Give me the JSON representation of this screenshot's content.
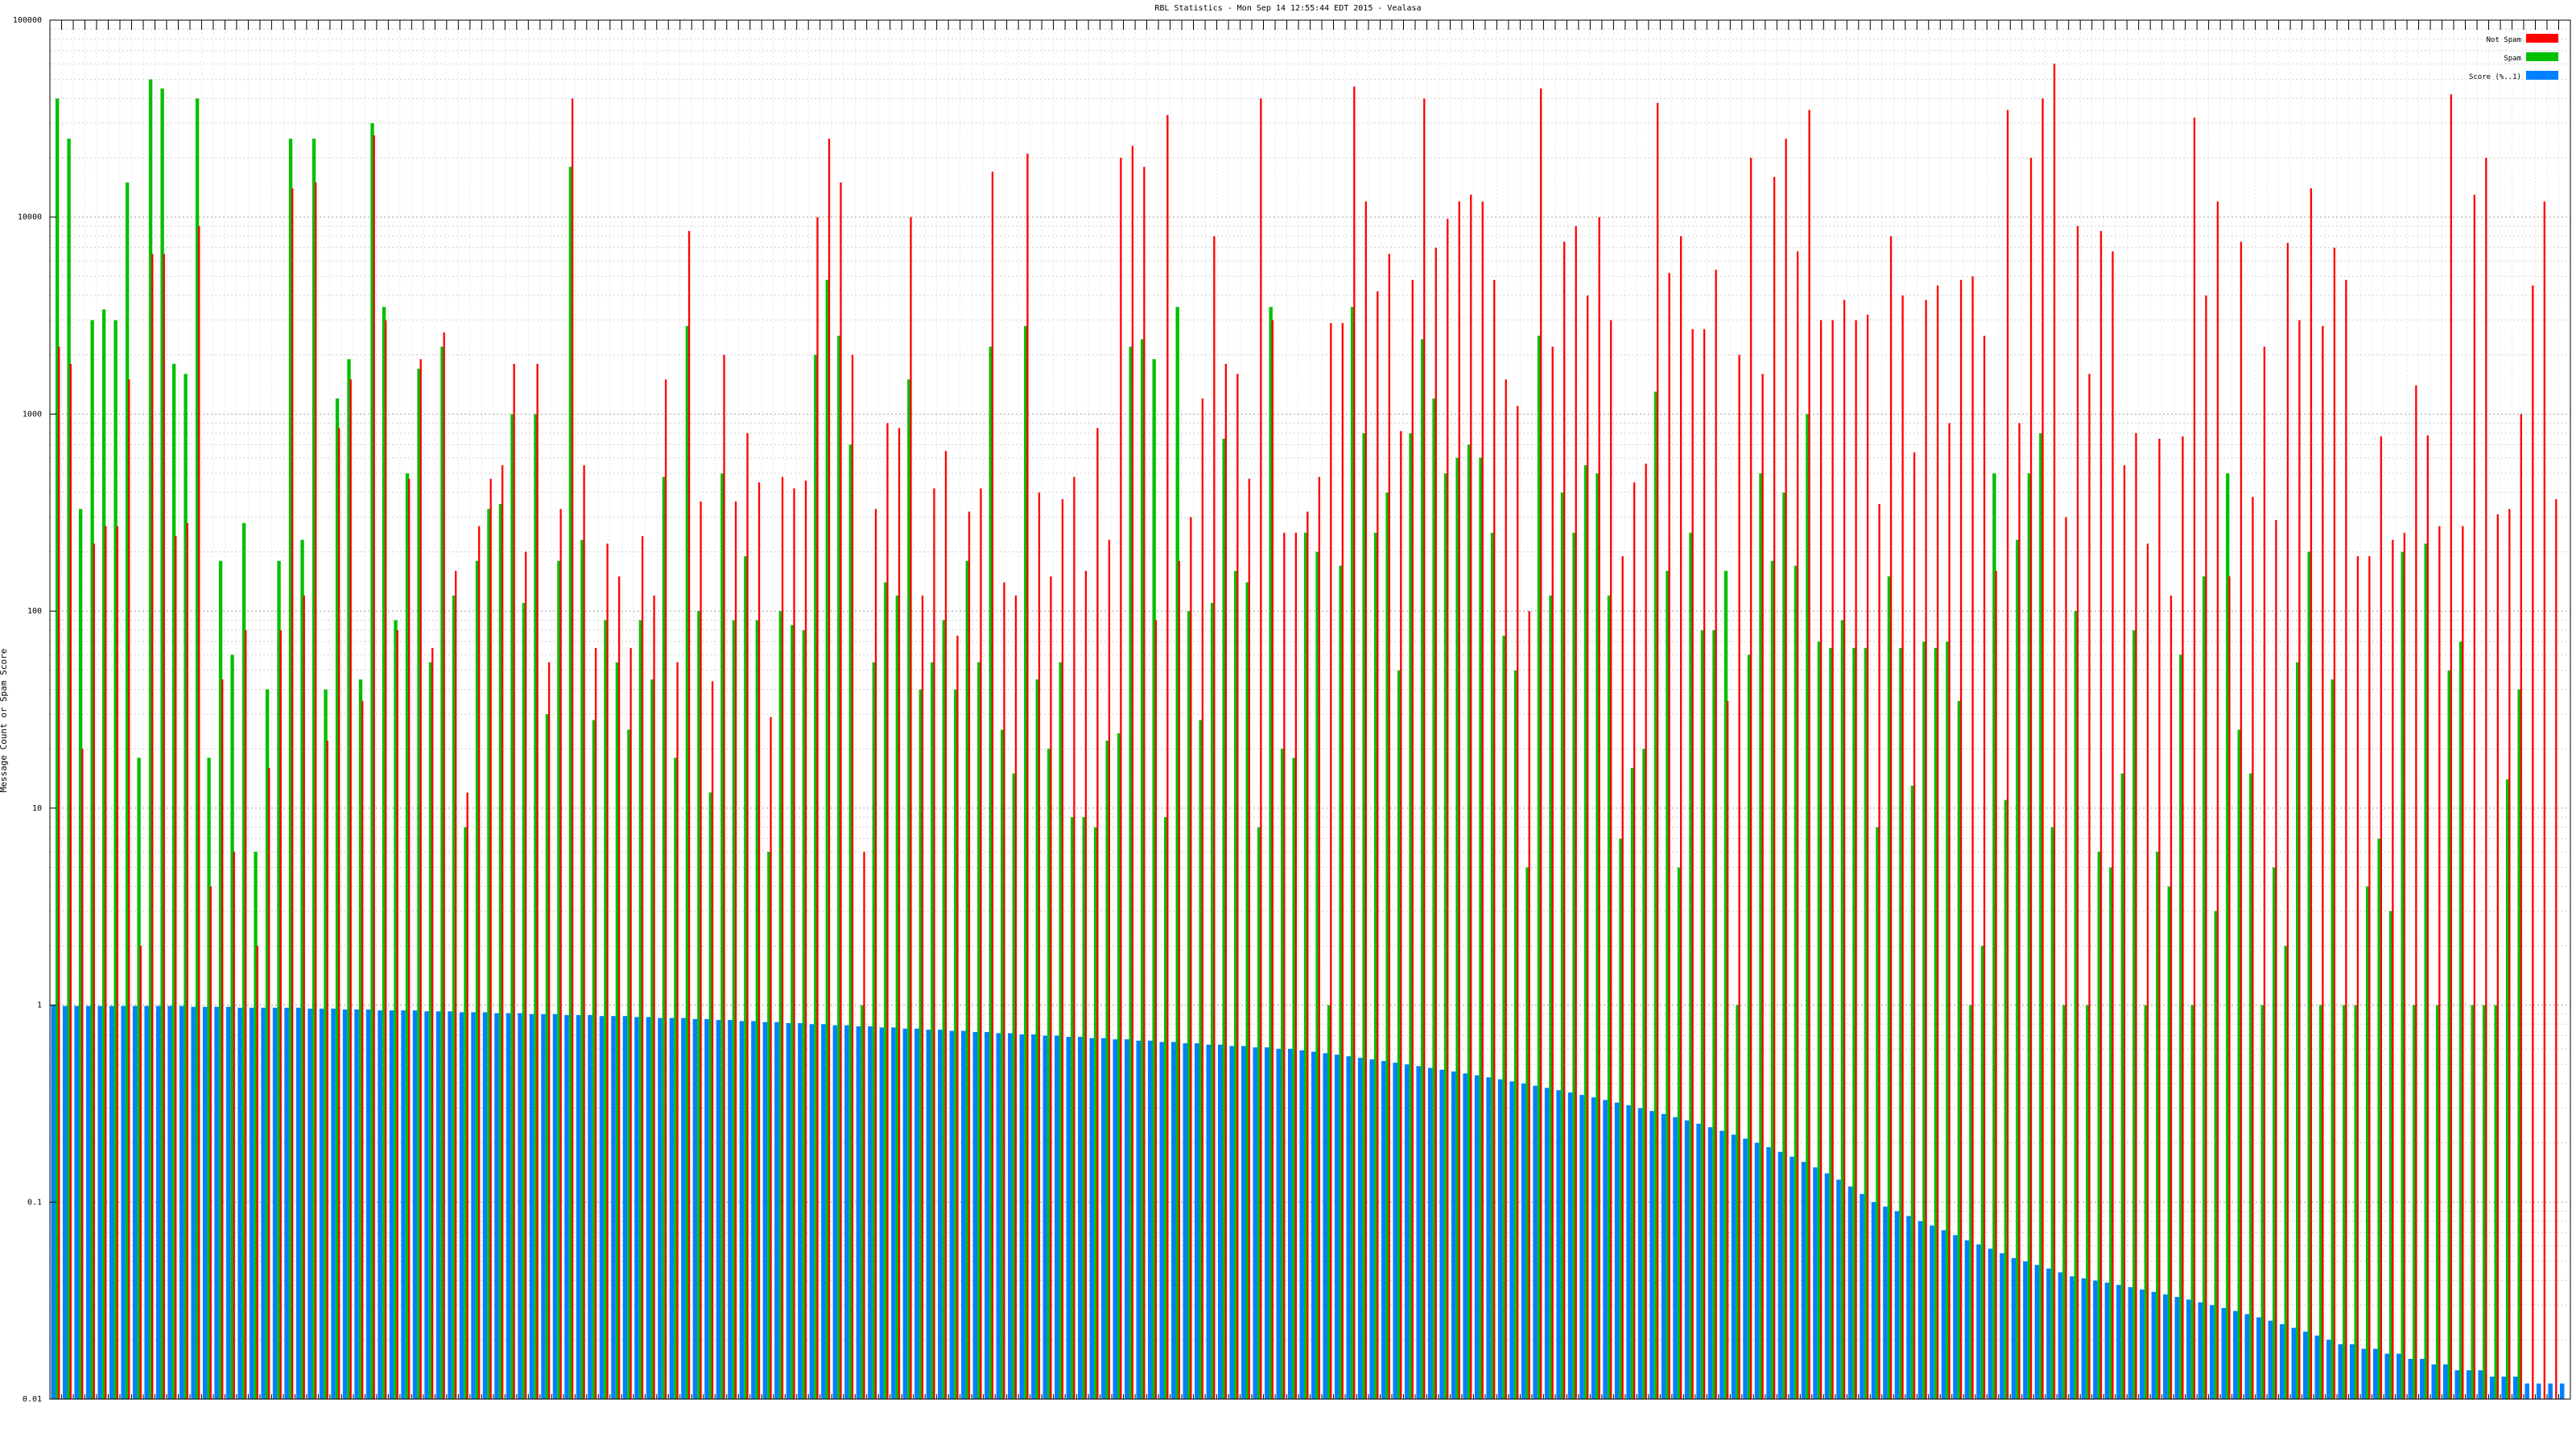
{
  "chart_data": {
    "type": "bar",
    "title": "RBL Statistics - Mon Sep 14 12:55:44 EDT 2015 - Vealasa",
    "ylabel": "Message Count or Spam Score",
    "xlabel": "",
    "yscale": "log",
    "ylim": [
      0.01,
      100000
    ],
    "yticks": [
      0.01,
      0.1,
      1,
      10,
      100,
      1000,
      10000,
      100000
    ],
    "ytick_labels": [
      "0.01",
      "0.1",
      "1",
      "10",
      "100",
      "1000",
      "10000",
      "100000"
    ],
    "grid": true,
    "legend_position": "top-right",
    "category_count": 216,
    "series": [
      {
        "name": "Not Spam",
        "color": "#ff0000",
        "values": [
          2200,
          1800,
          20,
          220,
          270,
          270,
          1500,
          2,
          6500,
          6500,
          240,
          280,
          9000,
          4,
          45,
          6,
          80,
          2,
          16,
          80,
          14000,
          120,
          15000,
          22,
          850,
          1500,
          35,
          26000,
          3000,
          80,
          470,
          1900,
          65,
          2600,
          160,
          12,
          270,
          470,
          550,
          1800,
          200,
          1800,
          55,
          330,
          40000,
          550,
          65,
          220,
          150,
          65,
          240,
          120,
          1500,
          55,
          8500,
          360,
          44,
          2000,
          360,
          800,
          450,
          29,
          480,
          420,
          460,
          10000,
          25000,
          15000,
          2000,
          6,
          330,
          900,
          850,
          10000,
          120,
          420,
          650,
          75,
          320,
          420,
          17000,
          140,
          120,
          21000,
          400,
          150,
          370,
          480,
          160,
          850,
          230,
          20000,
          23000,
          18000,
          90,
          33000,
          180,
          300,
          1200,
          8000,
          1800,
          1600,
          470,
          40000,
          3000,
          250,
          250,
          320,
          480,
          2900,
          2900,
          46000,
          12000,
          4200,
          6500,
          820,
          4800,
          40000,
          7000,
          9800,
          12000,
          13000,
          12000,
          4800,
          1500,
          1100,
          100,
          45000,
          2200,
          7500,
          9000,
          4000,
          10000,
          3000,
          190,
          450,
          560,
          38000,
          5200,
          8000,
          2700,
          2700,
          5400,
          35,
          2000,
          20000,
          1600,
          16000,
          25000,
          6700,
          35000,
          3000,
          3000,
          3800,
          3000,
          3200,
          350,
          8000,
          4000,
          640,
          3800,
          4500,
          900,
          4800,
          5000,
          2500,
          160,
          35000,
          900,
          20000,
          40000,
          60000,
          300,
          9000,
          1600,
          8500,
          6700,
          550,
          800,
          220,
          750,
          120,
          770,
          32000,
          4000,
          12000,
          150,
          7500,
          380,
          2200,
          290,
          7400,
          3000,
          14000,
          2800,
          7000,
          4800,
          190,
          190,
          770,
          230,
          250,
          1400,
          780,
          270,
          42000,
          270,
          13000,
          20000,
          310,
          330,
          1000,
          4500,
          12000,
          370
        ],
        "bar_mark": "line"
      },
      {
        "name": "Spam",
        "color": "#00c000",
        "values": [
          40000,
          25000,
          330,
          3000,
          3400,
          3000,
          15000,
          18,
          50000,
          45000,
          1800,
          1600,
          40000,
          18,
          180,
          60,
          280,
          6,
          40,
          180,
          25000,
          230,
          25000,
          40,
          1200,
          1900,
          45,
          30000,
          3500,
          90,
          500,
          1700,
          55,
          2200,
          120,
          8,
          180,
          330,
          350,
          1000,
          110,
          1000,
          30,
          180,
          18000,
          230,
          28,
          90,
          55,
          25,
          90,
          45,
          480,
          18,
          2800,
          100,
          12,
          500,
          90,
          190,
          90,
          6,
          100,
          85,
          80,
          2000,
          4800,
          2500,
          700,
          1,
          55,
          140,
          120,
          1500,
          40,
          55,
          90,
          40,
          180,
          55,
          2200,
          25,
          15,
          2800,
          45,
          20,
          55,
          9,
          9,
          8,
          22,
          24,
          2200,
          2400,
          1900,
          9,
          3500,
          100,
          28,
          110,
          750,
          160,
          140,
          8,
          3500,
          20,
          18,
          250,
          200,
          1,
          170,
          3500,
          800,
          250,
          400,
          50,
          800,
          2400,
          1200,
          500,
          600,
          700,
          600,
          250,
          75,
          50,
          5,
          2500,
          120,
          400,
          250,
          550,
          500,
          120,
          7,
          16,
          20,
          1300,
          160,
          5,
          250,
          80,
          80,
          160,
          1,
          60,
          500,
          180,
          400,
          170,
          1000,
          70,
          65,
          90,
          65,
          65,
          8,
          150,
          65,
          13,
          70,
          65,
          70,
          35,
          1,
          2,
          500,
          11,
          230,
          500,
          800,
          8,
          1,
          100,
          1,
          6,
          5,
          15,
          80,
          1,
          6,
          4,
          60,
          1,
          150,
          3,
          500,
          25,
          15,
          1,
          5,
          2,
          55,
          200,
          1,
          45,
          1,
          1,
          4,
          7,
          3,
          200,
          1,
          220,
          1,
          50,
          70,
          1,
          1,
          1,
          14,
          40
        ],
        "bar_mark": "bar"
      },
      {
        "name": "Score (%..1)",
        "color": "#0080ff",
        "values": [
          1.0,
          0.99,
          0.99,
          0.99,
          0.99,
          0.99,
          0.99,
          0.99,
          0.99,
          0.99,
          0.99,
          0.99,
          0.98,
          0.98,
          0.98,
          0.98,
          0.97,
          0.97,
          0.97,
          0.97,
          0.97,
          0.97,
          0.96,
          0.96,
          0.96,
          0.95,
          0.95,
          0.95,
          0.94,
          0.94,
          0.94,
          0.94,
          0.93,
          0.93,
          0.93,
          0.92,
          0.92,
          0.92,
          0.91,
          0.91,
          0.91,
          0.9,
          0.9,
          0.9,
          0.89,
          0.89,
          0.89,
          0.88,
          0.88,
          0.88,
          0.87,
          0.87,
          0.86,
          0.86,
          0.86,
          0.85,
          0.85,
          0.84,
          0.84,
          0.83,
          0.83,
          0.82,
          0.82,
          0.81,
          0.81,
          0.8,
          0.8,
          0.79,
          0.79,
          0.78,
          0.78,
          0.77,
          0.77,
          0.76,
          0.76,
          0.75,
          0.75,
          0.74,
          0.74,
          0.73,
          0.73,
          0.72,
          0.72,
          0.71,
          0.71,
          0.7,
          0.7,
          0.69,
          0.69,
          0.68,
          0.68,
          0.67,
          0.67,
          0.66,
          0.66,
          0.65,
          0.65,
          0.64,
          0.64,
          0.63,
          0.63,
          0.62,
          0.62,
          0.61,
          0.61,
          0.6,
          0.6,
          0.59,
          0.58,
          0.57,
          0.56,
          0.55,
          0.54,
          0.53,
          0.52,
          0.51,
          0.5,
          0.49,
          0.48,
          0.47,
          0.46,
          0.45,
          0.44,
          0.43,
          0.42,
          0.41,
          0.4,
          0.39,
          0.38,
          0.37,
          0.36,
          0.35,
          0.34,
          0.33,
          0.32,
          0.31,
          0.3,
          0.29,
          0.28,
          0.27,
          0.26,
          0.25,
          0.24,
          0.23,
          0.22,
          0.21,
          0.2,
          0.19,
          0.18,
          0.17,
          0.16,
          0.15,
          0.14,
          0.13,
          0.12,
          0.11,
          0.1,
          0.095,
          0.09,
          0.085,
          0.08,
          0.076,
          0.072,
          0.068,
          0.064,
          0.061,
          0.058,
          0.055,
          0.052,
          0.05,
          0.048,
          0.046,
          0.044,
          0.042,
          0.041,
          0.04,
          0.039,
          0.038,
          0.037,
          0.036,
          0.035,
          0.034,
          0.033,
          0.032,
          0.031,
          0.03,
          0.029,
          0.028,
          0.027,
          0.026,
          0.025,
          0.024,
          0.023,
          0.022,
          0.021,
          0.02,
          0.019,
          0.019,
          0.018,
          0.018,
          0.017,
          0.017,
          0.016,
          0.016,
          0.015,
          0.015,
          0.014,
          0.014,
          0.014,
          0.013,
          0.013,
          0.013,
          0.012,
          0.012,
          0.012,
          0.012,
          0.011,
          0.011
        ],
        "bar_mark": "bar"
      }
    ]
  },
  "legend": [
    {
      "label": "Not Spam",
      "color": "#ff0000"
    },
    {
      "label": "Spam",
      "color": "#00c000"
    },
    {
      "label": "Score (%..1)",
      "color": "#0080ff"
    }
  ]
}
